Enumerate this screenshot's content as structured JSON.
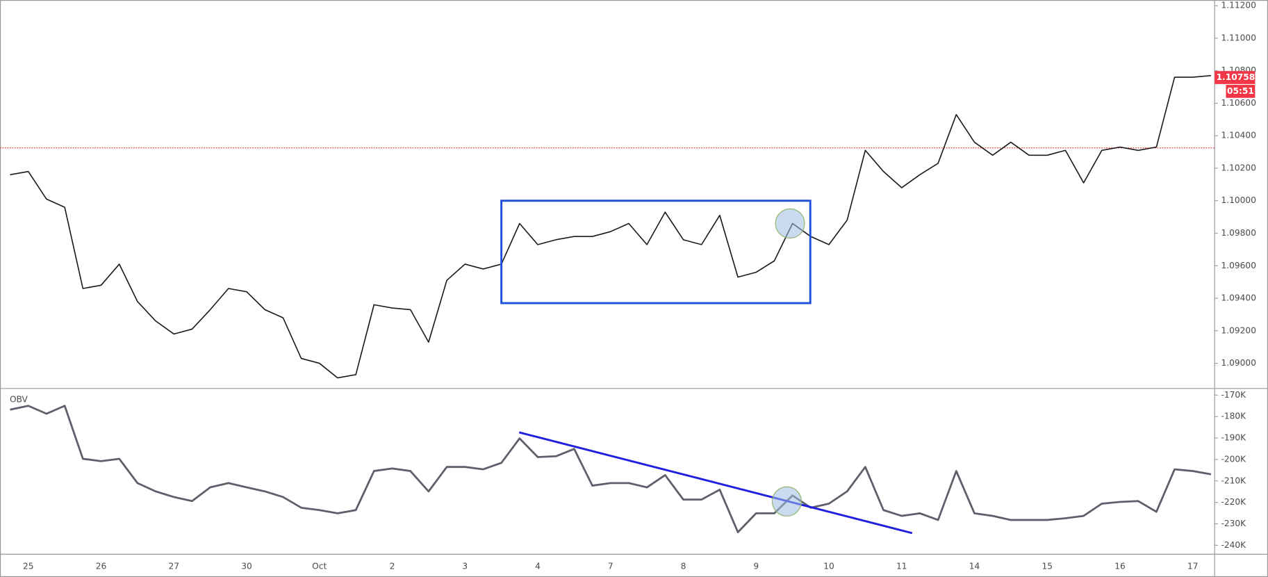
{
  "chart_data": [
    {
      "type": "line",
      "categories": [
        null,
        "25",
        null,
        null,
        null,
        "26",
        null,
        null,
        null,
        "27",
        null,
        null,
        null,
        "30",
        null,
        null,
        null,
        "Oct",
        null,
        null,
        null,
        "2",
        null,
        null,
        null,
        "3",
        null,
        null,
        null,
        "4",
        null,
        null,
        null,
        "7",
        null,
        null,
        null,
        "8",
        null,
        null,
        null,
        "9",
        null,
        null,
        null,
        "10",
        null,
        null,
        null,
        "11",
        null,
        null,
        null,
        "14",
        null,
        null,
        null,
        "15",
        null,
        null,
        null,
        "16",
        null,
        null,
        null,
        "17",
        null
      ],
      "series": [
        {
          "color": "#1b1b1b",
          "values": [
            1.1016,
            1.1018,
            1.1001,
            1.0996,
            1.0946,
            1.0948,
            1.0961,
            1.0938,
            1.0926,
            1.0918,
            1.0921,
            1.0933,
            1.0946,
            1.0944,
            1.0933,
            1.0928,
            1.0903,
            1.09,
            1.0891,
            1.0893,
            1.0936,
            1.0934,
            1.0933,
            1.0913,
            1.0951,
            1.0961,
            1.0958,
            1.0961,
            1.0986,
            1.0973,
            1.0976,
            1.0978,
            1.0978,
            1.0981,
            1.0986,
            1.0973,
            1.0993,
            1.0976,
            1.0973,
            1.0991,
            1.0953,
            1.0956,
            1.0963,
            1.0986,
            1.0978,
            1.0973,
            1.0988,
            1.1031,
            1.1018,
            1.1008,
            1.1016,
            1.1023,
            1.1053,
            1.1036,
            1.1028,
            1.1036,
            1.1028,
            1.1028,
            1.1031,
            1.1011,
            1.1031,
            1.1033,
            1.1031,
            1.1033,
            1.1076,
            1.1076,
            1.1077
          ]
        }
      ],
      "ylim": [
        1.0885,
        1.11235
      ],
      "yticks": [
        {
          "value": 1.09,
          "label": "1.09000"
        },
        {
          "value": 1.092,
          "label": "1.09200"
        },
        {
          "value": 1.094,
          "label": "1.09400"
        },
        {
          "value": 1.096,
          "label": "1.09600"
        },
        {
          "value": 1.098,
          "label": "1.09800"
        },
        {
          "value": 1.1,
          "label": "1.10000"
        },
        {
          "value": 1.102,
          "label": "1.10200"
        },
        {
          "value": 1.104,
          "label": "1.10400"
        },
        {
          "value": 1.106,
          "label": "1.10600"
        },
        {
          "value": 1.108,
          "label": "1.10800"
        },
        {
          "value": 1.11,
          "label": "1.11000"
        },
        {
          "value": 1.112,
          "label": "1.11200"
        }
      ],
      "reference_line": 1.10325,
      "reference_color": "#e53935",
      "last_price": 1.10758,
      "countdown": "05:51",
      "last_color": "#f23645"
    },
    {
      "type": "line",
      "label": "OBV",
      "series": [
        {
          "color": "#5d606b",
          "values": [
            -176800,
            -175000,
            -178700,
            -175000,
            -199700,
            -200800,
            -199700,
            -211000,
            -214900,
            -217500,
            -219400,
            -213000,
            -211000,
            -213000,
            -214900,
            -217500,
            -222500,
            -223600,
            -225100,
            -223600,
            -205400,
            -204200,
            -205400,
            -214900,
            -203500,
            -203500,
            -204600,
            -201600,
            -190200,
            -198900,
            -198500,
            -195100,
            -212200,
            -211000,
            -211000,
            -213000,
            -207300,
            -218700,
            -218700,
            -214100,
            -233900,
            -225100,
            -225100,
            -216800,
            -222500,
            -220600,
            -214900,
            -203500,
            -223600,
            -226300,
            -225100,
            -228200,
            -205400,
            -225100,
            -226300,
            -228200,
            -228200,
            -228200,
            -227400,
            -226300,
            -220600,
            -219800,
            -219400,
            -224400,
            -204600,
            -205400,
            -206900
          ]
        }
      ],
      "ylim": [
        -243800,
        -167300
      ],
      "yticks": [
        {
          "value": -170000,
          "label": "-170K"
        },
        {
          "value": -180000,
          "label": "-180K"
        },
        {
          "value": -190000,
          "label": "-190K"
        },
        {
          "value": -200000,
          "label": "-200K"
        },
        {
          "value": -210000,
          "label": "-210K"
        },
        {
          "value": -220000,
          "label": "-220K"
        },
        {
          "value": -230000,
          "label": "-230K"
        },
        {
          "value": -240000,
          "label": "-240K"
        }
      ]
    }
  ]
}
